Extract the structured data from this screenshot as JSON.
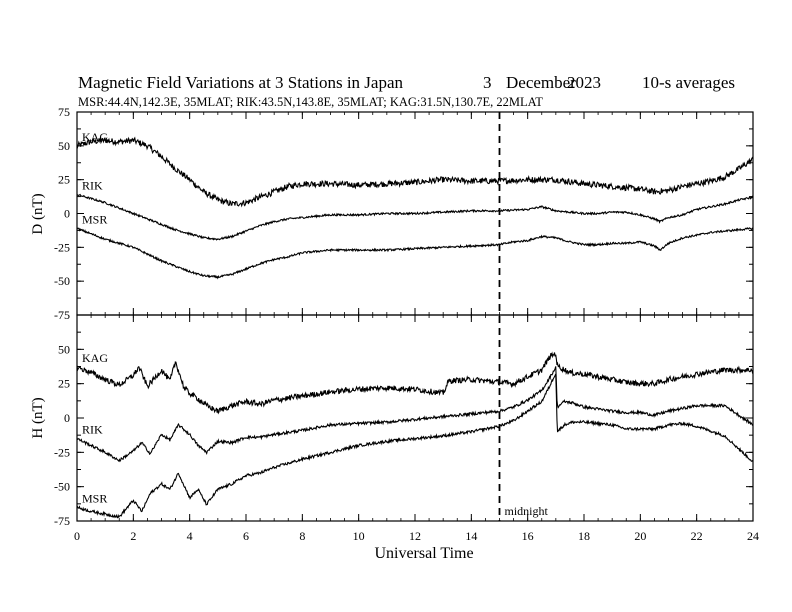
{
  "header": {
    "title": "Magnetic Field Variations at 3 Stations in Japan",
    "day": "3",
    "month": "December",
    "year": "2023",
    "averaging": "10-s averages",
    "stations_line": "MSR:44.4N,142.3E, 35MLAT;  RIK:43.5N,143.8E, 35MLAT;  KAG:31.5N,130.7E, 22MLAT"
  },
  "chart_data": [
    {
      "type": "line",
      "panel": "top",
      "ylabel": "D (nT)",
      "xlabel": "",
      "xlim": [
        0,
        24
      ],
      "ylim": [
        -75,
        75
      ],
      "yticks": [
        75,
        50,
        25,
        0,
        -25,
        -50,
        -75
      ],
      "xticks": [
        0,
        2,
        4,
        6,
        8,
        10,
        12,
        14,
        16,
        18,
        20,
        22,
        24
      ],
      "grid": false,
      "series": [
        {
          "name": "KAG",
          "noise": 2.2,
          "x": [
            0,
            0.5,
            1,
            1.5,
            2,
            2.5,
            3,
            3.5,
            4,
            4.5,
            5,
            5.5,
            6,
            6.5,
            7,
            7.5,
            8,
            9,
            10,
            11,
            12,
            13,
            14,
            15,
            16,
            17,
            18,
            18.5,
            19,
            19.5,
            20,
            20.5,
            21,
            21.5,
            22,
            22.5,
            23,
            23.5,
            24
          ],
          "values": [
            50,
            53,
            54,
            53,
            54,
            50,
            42,
            33,
            25,
            16,
            10,
            7,
            8,
            12,
            16,
            20,
            22,
            22,
            21,
            22,
            23,
            25,
            24,
            24,
            25,
            25,
            22,
            21,
            20,
            19,
            18,
            16,
            17,
            20,
            22,
            24,
            27,
            33,
            40
          ]
        },
        {
          "name": "RIK",
          "noise": 0.7,
          "x": [
            0,
            0.5,
            1,
            1.5,
            2,
            2.5,
            3,
            3.5,
            4,
            4.5,
            5,
            5.5,
            6,
            6.5,
            7,
            7.5,
            8,
            9,
            10,
            11,
            12,
            13,
            14,
            15,
            16,
            16.5,
            17,
            17.5,
            18,
            18.5,
            19,
            19.5,
            20,
            20.5,
            20.7,
            21,
            21.5,
            22,
            22.5,
            23,
            23.5,
            24
          ],
          "values": [
            14,
            11,
            8,
            4,
            0,
            -4,
            -8,
            -12,
            -15,
            -18,
            -19,
            -17,
            -13,
            -9,
            -6,
            -4,
            -3,
            -1,
            -1,
            0,
            0,
            1,
            2,
            2,
            3,
            5,
            2,
            1,
            0,
            0,
            1,
            1,
            -1,
            -4,
            -6,
            -3,
            -1,
            3,
            5,
            7,
            10,
            12
          ]
        },
        {
          "name": "MSR",
          "noise": 0.7,
          "x": [
            0,
            0.5,
            1,
            1.5,
            2,
            2.5,
            3,
            3.5,
            4,
            4.5,
            5,
            5.5,
            6,
            6.5,
            7,
            7.5,
            8,
            9,
            10,
            11,
            12,
            13,
            14,
            15,
            15.5,
            16,
            16.5,
            17,
            17.5,
            18,
            18.5,
            19,
            19.5,
            20,
            20.5,
            20.7,
            21,
            21.5,
            22,
            22.5,
            23,
            23.5,
            24
          ],
          "values": [
            -11,
            -15,
            -19,
            -22,
            -25,
            -30,
            -35,
            -39,
            -43,
            -46,
            -47,
            -45,
            -41,
            -37,
            -34,
            -32,
            -29,
            -27,
            -27,
            -27,
            -26,
            -25,
            -24,
            -23,
            -21,
            -20,
            -17,
            -18,
            -21,
            -23,
            -23,
            -22,
            -22,
            -21,
            -24,
            -27,
            -22,
            -18,
            -16,
            -14,
            -13,
            -12,
            -11
          ]
        }
      ],
      "labels": [
        "KAG",
        "RIK",
        "MSR"
      ],
      "annotations": []
    },
    {
      "type": "line",
      "panel": "bottom",
      "ylabel": "H (nT)",
      "xlabel": "Universal Time",
      "xlim": [
        0,
        24
      ],
      "ylim": [
        -75,
        75
      ],
      "yticks": [
        50,
        25,
        0,
        -25,
        -50,
        -75
      ],
      "xticks": [
        0,
        2,
        4,
        6,
        8,
        10,
        12,
        14,
        16,
        18,
        20,
        22,
        24
      ],
      "grid": false,
      "series": [
        {
          "name": "KAG",
          "noise": 2.0,
          "x": [
            0,
            0.5,
            1,
            1.5,
            2,
            2.2,
            2.5,
            2.8,
            3,
            3.3,
            3.5,
            3.8,
            4,
            4.3,
            4.6,
            5,
            5.5,
            6,
            6.5,
            7,
            8,
            9,
            10,
            11,
            12,
            13,
            13.2,
            14,
            15,
            15.5,
            16,
            16.5,
            16.8,
            17,
            17.05,
            17.5,
            18,
            19,
            19.5,
            20,
            20.5,
            21,
            21.5,
            22,
            23,
            24
          ],
          "values": [
            37,
            33,
            28,
            24,
            31,
            37,
            23,
            30,
            35,
            27,
            41,
            22,
            18,
            14,
            9,
            5,
            9,
            12,
            10,
            13,
            16,
            19,
            21,
            22,
            21,
            18,
            27,
            28,
            26,
            25,
            30,
            35,
            45,
            47,
            38,
            33,
            32,
            28,
            26,
            25,
            25,
            28,
            30,
            32,
            35,
            35
          ]
        },
        {
          "name": "RIK",
          "noise": 1.0,
          "x": [
            0,
            0.5,
            1,
            1.5,
            2,
            2.3,
            2.6,
            3,
            3.3,
            3.6,
            4,
            4.3,
            4.6,
            5,
            5.5,
            6,
            6.5,
            7,
            8,
            9,
            10,
            11,
            12,
            13,
            14,
            15,
            15.5,
            16,
            16.5,
            16.8,
            17,
            17.05,
            17.3,
            17.6,
            18,
            19,
            19.5,
            20,
            20.5,
            21,
            21.5,
            22,
            23,
            24
          ],
          "values": [
            -15,
            -20,
            -25,
            -31,
            -24,
            -18,
            -26,
            -12,
            -16,
            -5,
            -12,
            -20,
            -25,
            -17,
            -18,
            -14,
            -14,
            -12,
            -9,
            -5,
            -4,
            -3,
            -1,
            1,
            3,
            5,
            8,
            13,
            20,
            30,
            37,
            8,
            12,
            11,
            8,
            5,
            4,
            4,
            2,
            5,
            7,
            9,
            9,
            -5
          ]
        },
        {
          "name": "MSR",
          "noise": 1.0,
          "x": [
            0,
            0.5,
            1,
            1.5,
            2,
            2.3,
            2.6,
            3,
            3.3,
            3.6,
            4,
            4.3,
            4.6,
            5,
            5.5,
            6,
            6.5,
            7,
            8,
            9,
            10,
            11,
            12,
            13,
            14,
            15,
            15.5,
            16,
            16.5,
            16.8,
            17,
            17.05,
            17.3,
            17.6,
            18,
            19,
            19.5,
            20,
            20.5,
            21,
            21.5,
            22,
            23,
            24
          ],
          "values": [
            -65,
            -68,
            -70,
            -72,
            -60,
            -68,
            -55,
            -48,
            -52,
            -40,
            -58,
            -52,
            -63,
            -52,
            -48,
            -42,
            -40,
            -36,
            -30,
            -25,
            -20,
            -17,
            -15,
            -13,
            -10,
            -6,
            -2,
            5,
            12,
            24,
            33,
            -10,
            -5,
            -3,
            -3,
            -5,
            -8,
            -8,
            -8,
            -5,
            -4,
            -6,
            -13,
            -32
          ]
        }
      ],
      "labels": [
        "KAG",
        "RIK",
        "MSR"
      ],
      "annotations": [
        {
          "text": "midnight",
          "x": 15
        }
      ]
    }
  ],
  "midnight_line_x": 15
}
